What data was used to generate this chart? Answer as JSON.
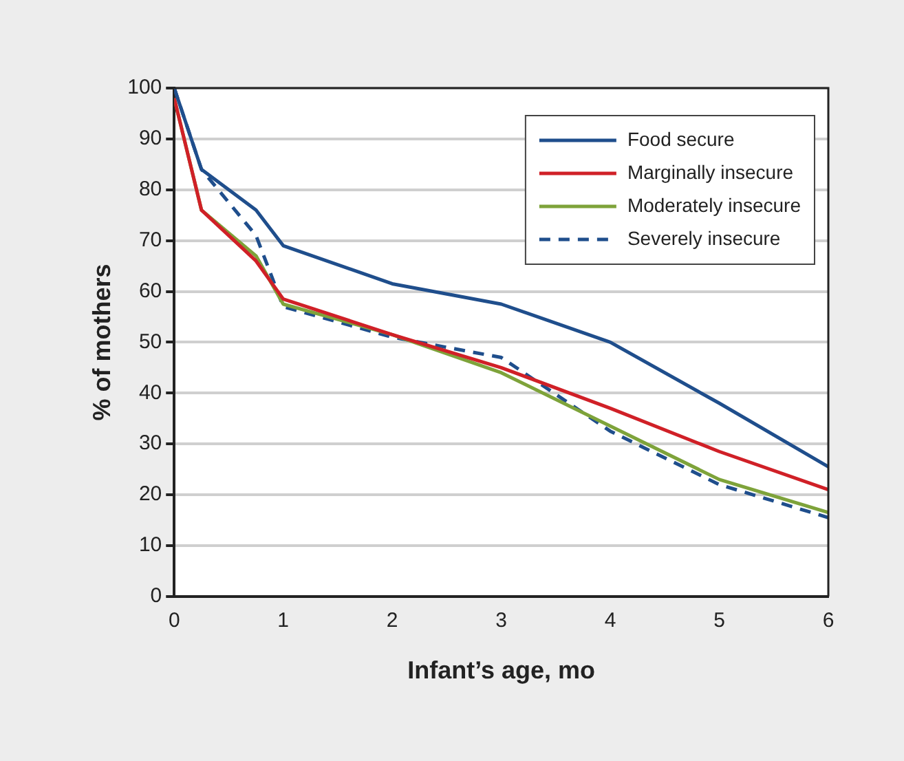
{
  "chart_data": {
    "type": "line",
    "xlabel": "Infant’s age, mo",
    "ylabel": "% of mothers",
    "x": [
      0,
      0.25,
      0.75,
      1,
      2,
      3,
      4,
      5,
      6
    ],
    "series": [
      {
        "name": "Food secure",
        "color": "#1f4e8c",
        "values": [
          100,
          84,
          76,
          69,
          61.5,
          57.5,
          50,
          38,
          25.5
        ]
      },
      {
        "name": "Marginally insecure",
        "color": "#d02027",
        "values": [
          98,
          76,
          66,
          58.5,
          51.5,
          45,
          37,
          28.5,
          21
        ]
      },
      {
        "name": "Moderately insecure",
        "color": "#7ea33a",
        "values": [
          98,
          76,
          67,
          57.5,
          51.5,
          44,
          33.5,
          23,
          16.5
        ]
      },
      {
        "name": "Severely insecure",
        "color": "#1f4e8c",
        "line_style": "dashed",
        "values": [
          100,
          84,
          71,
          57,
          51,
          47,
          32.5,
          22,
          15.5
        ]
      }
    ],
    "xlim": [
      0,
      6
    ],
    "xticks": [
      0,
      1,
      2,
      3,
      4,
      5,
      6
    ],
    "ylim": [
      0,
      100
    ],
    "yticks": [
      0,
      10,
      20,
      30,
      40,
      50,
      60,
      70,
      80,
      90,
      100
    ],
    "grid": "y",
    "legend": "top right",
    "marker": "none"
  }
}
